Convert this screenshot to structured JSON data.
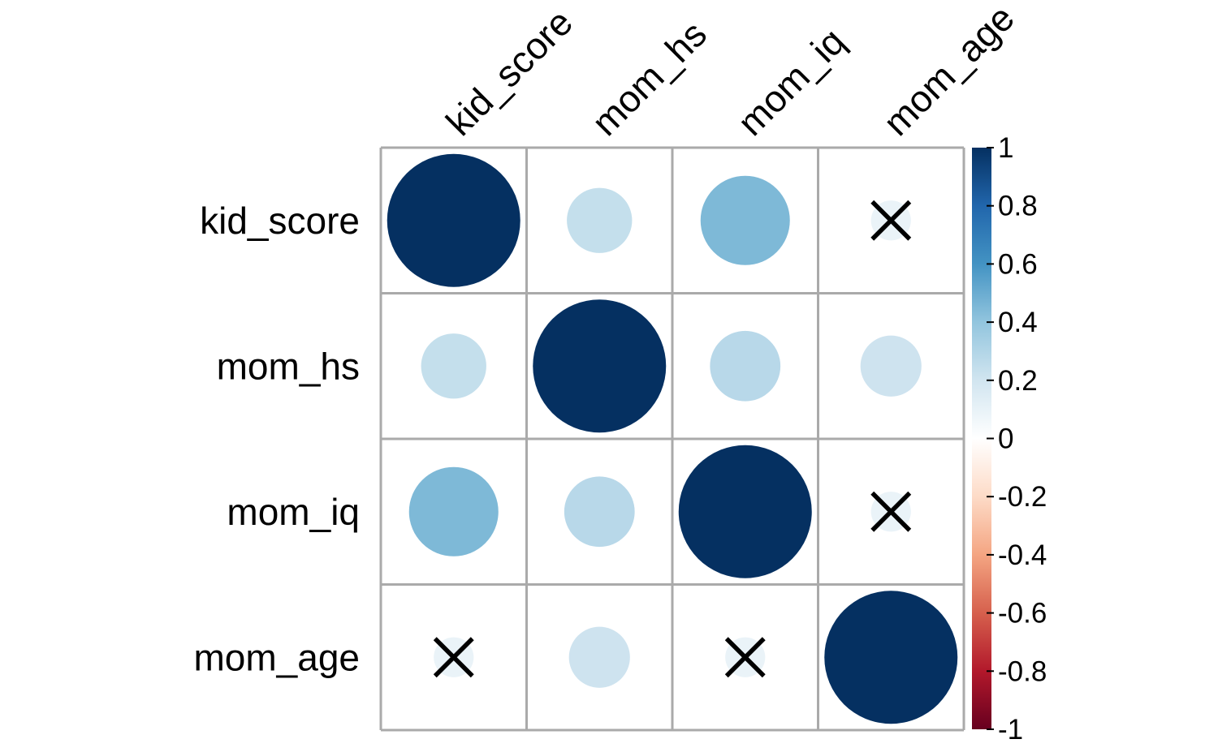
{
  "chart_data": {
    "type": "heatmap",
    "variables": [
      "kid_score",
      "mom_hs",
      "mom_iq",
      "mom_age"
    ],
    "matrix": [
      [
        1.0,
        0.24,
        0.45,
        0.09
      ],
      [
        0.24,
        1.0,
        0.28,
        0.21
      ],
      [
        0.45,
        0.28,
        1.0,
        0.09
      ],
      [
        0.09,
        0.21,
        0.09,
        1.0
      ]
    ],
    "crossed_out": [
      [
        0,
        3
      ],
      [
        2,
        3
      ],
      [
        3,
        0
      ],
      [
        3,
        2
      ]
    ],
    "color_scale": {
      "range": [
        -1,
        1
      ],
      "ticks": [
        "1",
        "0.8",
        "0.6",
        "0.4",
        "0.2",
        "0",
        "-0.2",
        "-0.4",
        "-0.6",
        "-0.8",
        "-1"
      ],
      "colors": [
        "#67001F",
        "#B2182B",
        "#D6604D",
        "#F4A582",
        "#FDDBC7",
        "#FFFFFF",
        "#D1E5F0",
        "#92C5DE",
        "#4393C3",
        "#2166AC",
        "#053061"
      ]
    },
    "grid_color": "#AAAAAA",
    "cross_color": "#000000",
    "legend_position": "right"
  }
}
